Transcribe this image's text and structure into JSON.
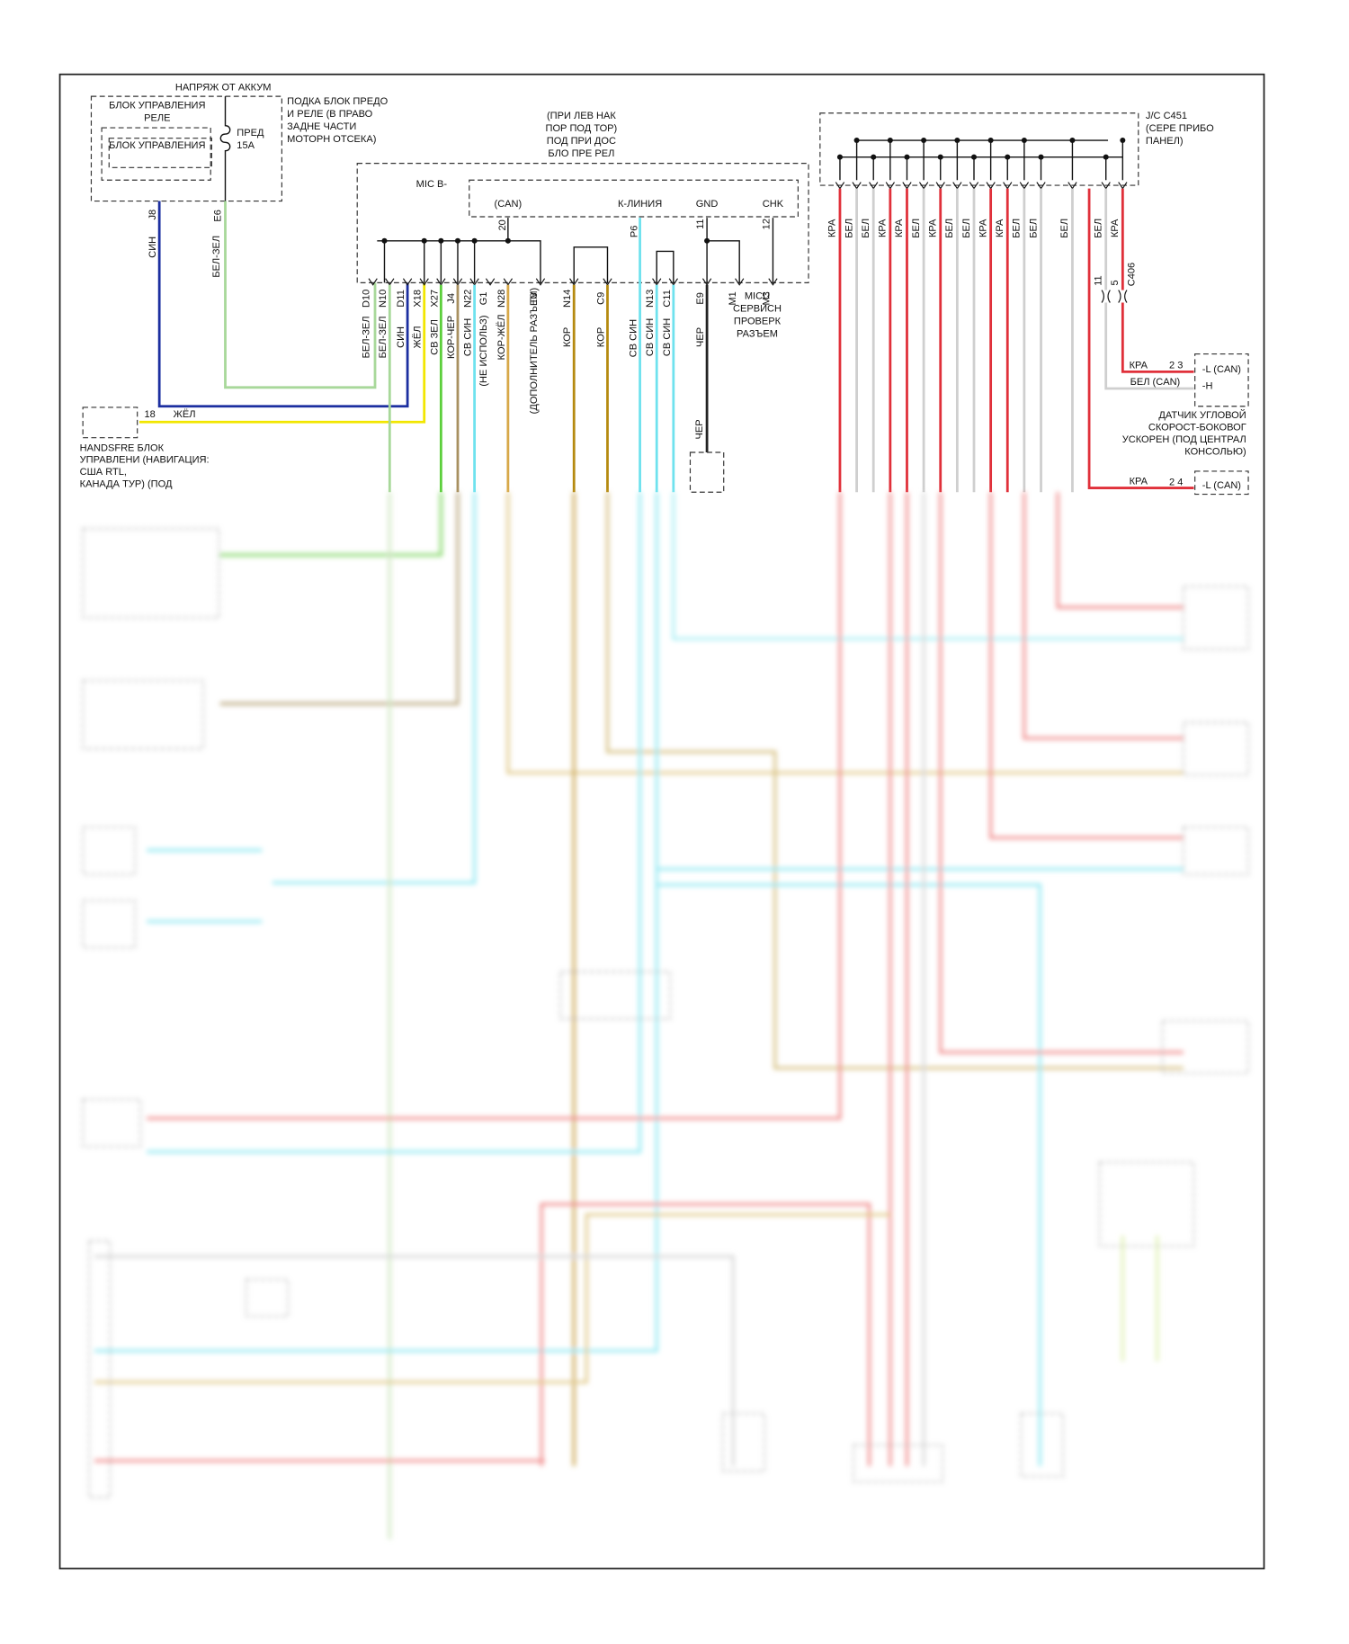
{
  "supply_label": "НАПРЯЖ ОТ АККУМ",
  "relay_box": {
    "title": [
      "БЛОК УПРАВЛЕНИЯ",
      "РЕЛЕ"
    ],
    "inner": "БЛОК УПРАВЛЕНИЯ",
    "fuse": [
      "ПРЕД",
      "15A"
    ],
    "location": [
      "ПОДКА БЛОК ПРЕДО",
      "И РЕЛЕ (В ПРАВО",
      "ЗАДНЕ ЧАСТИ",
      "МОТОРН ОТСЕКА)"
    ],
    "pins": [
      {
        "pin": "J8",
        "wire": "СИН"
      },
      {
        "pin": "E6",
        "wire": "БЕЛ-ЗЕЛ"
      }
    ]
  },
  "mic": {
    "location": [
      "(ПРИ ЛЕВ НАК",
      "ПОР ПОД ТОР)",
      "ПОД ПРИ ДОС",
      "БЛО ПРЕ РЕЛ"
    ],
    "name": "MIC B-",
    "signals": [
      "(CAN)",
      "К-ЛИНИЯ",
      "GND",
      "CHK"
    ],
    "signal_pins": [
      "20",
      "P6",
      "11",
      "12"
    ],
    "p6_wire": "СВ СИН",
    "pins": [
      {
        "pin": "D10",
        "wire": "БЕЛ-ЗЕЛ"
      },
      {
        "pin": "N10",
        "wire": "БЕЛ-ЗЕЛ"
      },
      {
        "pin": "D11",
        "wire": "СИН"
      },
      {
        "pin": "X18",
        "wire": "ЖЁЛ"
      },
      {
        "pin": "X27",
        "wire": "СВ ЗЕЛ"
      },
      {
        "pin": "J4",
        "wire": "КОР-ЧЕР"
      },
      {
        "pin": "N22",
        "wire": "СВ СИН"
      },
      {
        "pin": "G1",
        "wire": "(НЕ ИСПОЛЬЗ)"
      },
      {
        "pin": "N28",
        "wire": "КОР-ЖЁЛ"
      },
      {
        "pin": "T3",
        "wire": "(ДОПОЛНИТЕЛЬ РАЗЪЕМ)"
      },
      {
        "pin": "N14",
        "wire": "КОР"
      },
      {
        "pin": "C9",
        "wire": "КОР"
      },
      {
        "pin": "N13",
        "wire": "СВ СИН"
      },
      {
        "pin": "C11",
        "wire": "СВ СИН"
      },
      {
        "pin": "E9",
        "wire": "ЧЕР"
      },
      {
        "pin": "M1"
      },
      {
        "pin": "M3"
      }
    ]
  },
  "micu": {
    "label": [
      "MICU",
      "СЕРВИСН",
      "ПРОВЕРК",
      "РАЗЪЕМ"
    ],
    "wire": "ЧЕР"
  },
  "handsfree": {
    "pin": "18",
    "wire": "ЖЁЛ",
    "label": [
      "HANDSFRE БЛОК",
      "УПРАВЛЕНИ (НАВИГАЦИЯ:",
      "США RTL,",
      "КАНАДА ТУР) (ПОД"
    ]
  },
  "jc": {
    "label": [
      "J/C C451",
      "(СЕРЕ ПРИБО",
      "ПАНЕЛ)"
    ],
    "wires": [
      "КРА",
      "БЕЛ",
      "БЕЛ",
      "КРА",
      "КРА",
      "БЕЛ",
      "КРА",
      "БЕЛ",
      "БЕЛ",
      "КРА",
      "КРА",
      "БЕЛ",
      "БЕЛ",
      "БЕЛ",
      "БЕЛ",
      "КРА"
    ],
    "c406": {
      "pins": [
        "11",
        "5"
      ],
      "name": "C406"
    }
  },
  "sensor": {
    "rows": [
      {
        "wire": "КРА",
        "pin": "2 3",
        "term": "-L (CAN)"
      },
      {
        "wire": "БЕЛ (CAN)",
        "term": "-H"
      }
    ],
    "label": [
      "ДАТЧИК УГЛОВОЙ",
      "СКОРОСТ-БОКОВОГ",
      "УСКОРЕН (ПОД ЦЕНТРАЛ",
      "КОНСОЛЬЮ)"
    ]
  },
  "lower": {
    "wire": "КРА",
    "pin": "2 4",
    "term": "-L (CAN)"
  }
}
